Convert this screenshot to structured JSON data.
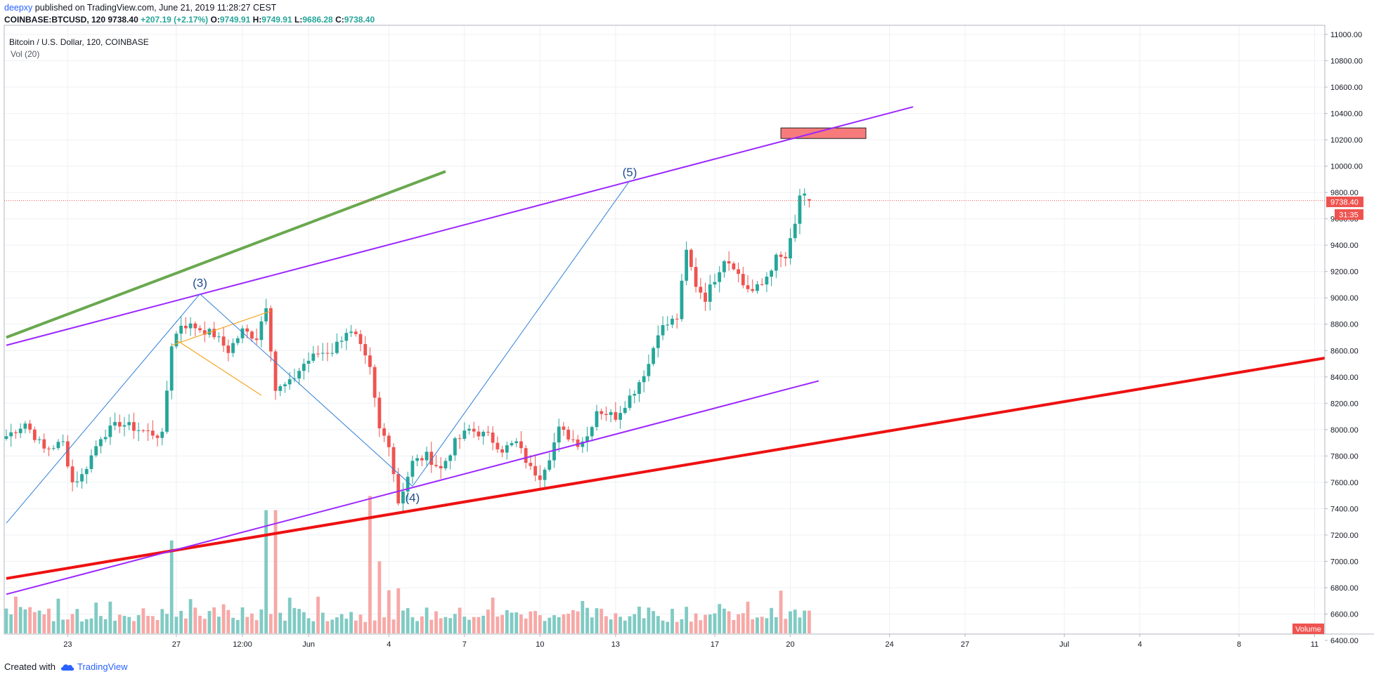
{
  "header": {
    "author": "deepxy",
    "published_text": "published on TradingView.com, June 21, 2019 11:28:27 CEST",
    "symbol": "COINBASE:BTCUSD, 120",
    "last": "9738.40",
    "change": "+207.19 (+2.17%)",
    "o_label": "O:",
    "o": "9749.91",
    "h_label": "H:",
    "h": "9749.91",
    "l_label": "L:",
    "l": "9686.28",
    "c_label": "C:",
    "c": "9738.40"
  },
  "legend": {
    "series_title": "Bitcoin / U.S. Dollar, 120, COINBASE",
    "volume_title": "Vol (20)"
  },
  "price_badge": "9738.40",
  "timer_badge": "31:35",
  "volume_badge": "Volume",
  "footer": {
    "created_with": "Created with",
    "brand": "TradingView"
  },
  "colors": {
    "up": "#26a69a",
    "down": "#ef5350",
    "vol_up": "#80cbc4",
    "vol_down": "#f7a8a6",
    "green_trend": "#6aa84f",
    "red_trend": "#ee1111",
    "purple_channel": "#9c27ff",
    "blue_wave": "#2f7fd6",
    "orange_wedge": "#f5a623",
    "target_box": "#f77b7b",
    "wave_label": "#1e4b8f"
  },
  "chart_data": {
    "type": "candlestick",
    "title": "Bitcoin / U.S. Dollar, 120, COINBASE",
    "interval": "120",
    "y_axis": {
      "ticks": [
        6400,
        6600,
        6800,
        7000,
        7200,
        7400,
        7600,
        7800,
        8000,
        8200,
        8400,
        8600,
        8800,
        9000,
        9200,
        9400,
        9600,
        9800,
        10000,
        10200,
        10400,
        10600,
        10800,
        11000
      ],
      "tick_labels": [
        "6400.00",
        "6600.00",
        "6800.00",
        "7000.00",
        "7200.00",
        "7400.00",
        "7600.00",
        "7800.00",
        "8000.00",
        "8200.00",
        "8400.00",
        "8600.00",
        "8800.00",
        "9000.00",
        "9200.00",
        "9400.00",
        "9600.00",
        "9800.00",
        "10000.00",
        "10200.00",
        "10400.00",
        "10600.00",
        "10800.00",
        "11000.00"
      ],
      "range": [
        6300,
        11100
      ]
    },
    "x_axis": {
      "tick_labels": [
        "23",
        "27",
        "12:00",
        "Jun",
        "4",
        "7",
        "10",
        "13",
        "17",
        "20",
        "24",
        "27",
        "Jul",
        "4",
        "8",
        "11"
      ],
      "tick_index": [
        13,
        36,
        50,
        64,
        81,
        97,
        113,
        129,
        150,
        166,
        187,
        203,
        224,
        240,
        261,
        277
      ]
    },
    "bars": 171,
    "price_anchors": [
      [
        0,
        7950
      ],
      [
        4,
        8050
      ],
      [
        8,
        7850
      ],
      [
        12,
        7900
      ],
      [
        14,
        7600
      ],
      [
        16,
        7650
      ],
      [
        20,
        7950
      ],
      [
        24,
        8050
      ],
      [
        28,
        8000
      ],
      [
        33,
        7950
      ],
      [
        35,
        8650
      ],
      [
        37,
        8800
      ],
      [
        40,
        8780
      ],
      [
        44,
        8720
      ],
      [
        47,
        8600
      ],
      [
        50,
        8750
      ],
      [
        53,
        8700
      ],
      [
        55,
        8950
      ],
      [
        57,
        8300
      ],
      [
        60,
        8350
      ],
      [
        63,
        8500
      ],
      [
        66,
        8580
      ],
      [
        69,
        8600
      ],
      [
        72,
        8750
      ],
      [
        74,
        8700
      ],
      [
        77,
        8450
      ],
      [
        79,
        8000
      ],
      [
        81,
        7900
      ],
      [
        83,
        7450
      ],
      [
        86,
        7750
      ],
      [
        89,
        7800
      ],
      [
        92,
        7700
      ],
      [
        95,
        7900
      ],
      [
        98,
        8000
      ],
      [
        102,
        7950
      ],
      [
        105,
        7850
      ],
      [
        108,
        7900
      ],
      [
        111,
        7700
      ],
      [
        113,
        7650
      ],
      [
        115,
        7800
      ],
      [
        117,
        8000
      ],
      [
        121,
        7900
      ],
      [
        123,
        7950
      ],
      [
        125,
        8150
      ],
      [
        129,
        8100
      ],
      [
        133,
        8300
      ],
      [
        136,
        8500
      ],
      [
        138,
        8750
      ],
      [
        142,
        8850
      ],
      [
        144,
        9350
      ],
      [
        146,
        9100
      ],
      [
        148,
        9000
      ],
      [
        150,
        9150
      ],
      [
        152,
        9300
      ],
      [
        154,
        9250
      ],
      [
        156,
        9100
      ],
      [
        158,
        9050
      ],
      [
        160,
        9100
      ],
      [
        163,
        9300
      ],
      [
        165,
        9300
      ],
      [
        167,
        9550
      ],
      [
        168,
        9780
      ],
      [
        170,
        9738
      ]
    ],
    "last_price": 9738.4,
    "open": 9749.91,
    "high": 9749.91,
    "low": 9686.28,
    "close": 9738.4,
    "change": 207.19,
    "change_pct": 2.17,
    "volume": {
      "indicator": "Vol (20)",
      "spikes": [
        [
          35,
          980
        ],
        [
          55,
          1300
        ],
        [
          57,
          1300
        ],
        [
          77,
          1450
        ],
        [
          79,
          760
        ]
      ],
      "baseline": 120
    },
    "annotations": {
      "wave_labels": [
        {
          "text": "(3)",
          "bar": 41,
          "price": 9040
        },
        {
          "text": "(4)",
          "bar": 86,
          "price": 7580
        },
        {
          "text": "(5)",
          "bar": 132,
          "price": 9880
        }
      ],
      "wave_path": [
        [
          0,
          7290
        ],
        [
          41,
          9030
        ],
        [
          86,
          7570
        ],
        [
          132,
          9890
        ]
      ],
      "green_trendline": [
        [
          0,
          8700
        ],
        [
          93,
          9960
        ]
      ],
      "red_trendline": [
        [
          0,
          6870
        ],
        [
          282,
          8560
        ]
      ],
      "purple_upper": [
        [
          0,
          8640
        ],
        [
          192,
          10450
        ]
      ],
      "purple_lower": [
        [
          0,
          6750
        ],
        [
          172,
          8370
        ]
      ],
      "orange_wedge": [
        [
          [
            35,
            8640
          ],
          [
            56,
            8900
          ]
        ],
        [
          [
            36,
            8680
          ],
          [
            54,
            8260
          ]
        ]
      ],
      "target_box": {
        "bar_from": 164,
        "bar_to": 182,
        "price_from": 10210,
        "price_to": 10290
      }
    }
  }
}
